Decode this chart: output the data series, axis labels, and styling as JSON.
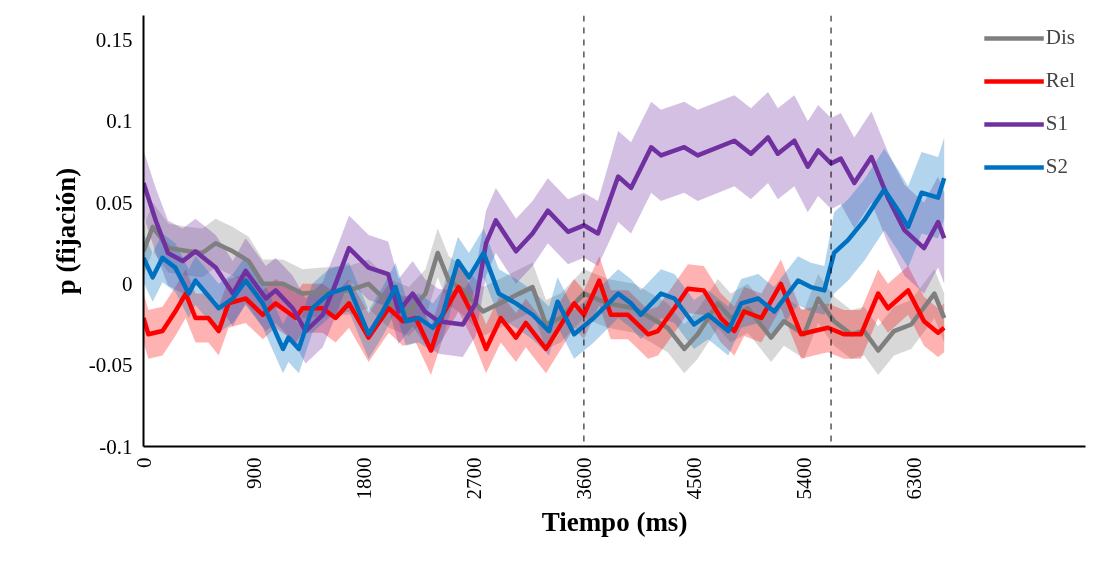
{
  "chart_data": {
    "type": "line",
    "xlabel": "Tiempo (ms)",
    "ylabel": "p (fijación)",
    "xlim": [
      0,
      7700
    ],
    "xticks": [
      0,
      900,
      1800,
      2700,
      3600,
      4500,
      5400,
      6300
    ],
    "ylim": [
      -0.1,
      0.165
    ],
    "yticks": [
      -0.1,
      -0.05,
      0,
      0.05,
      0.1,
      0.15
    ],
    "grid": false,
    "legend": "top right",
    "marker": "none",
    "line_style": "solid",
    "ref_lines": [
      {
        "axis": "x",
        "value": 3600,
        "color": "#000000",
        "line_style": "dashed"
      },
      {
        "axis": "x",
        "value": 5620,
        "color": "#000000",
        "line_style": "dashed"
      }
    ],
    "series": [
      {
        "name": "Dis",
        "color": "#7f7f7f",
        "x": [
          0,
          75,
          205,
          370,
          480,
          590,
          730,
          860,
          975,
          1140,
          1300,
          1465,
          1680,
          1840,
          2005,
          2170,
          2305,
          2405,
          2495,
          2610,
          2775,
          2940,
          3070,
          3180,
          3290,
          3410,
          3600,
          3795,
          4010,
          4150,
          4285,
          4420,
          4530,
          4695,
          4800,
          4940,
          5130,
          5235,
          5400,
          5515,
          5645,
          5785,
          5890,
          6005,
          6135,
          6275,
          6465,
          6545
        ],
        "values": [
          0.02,
          0.035,
          0.022,
          0.02,
          0.019,
          0.025,
          0.02,
          0.014,
          0,
          0,
          -0.006,
          -0.005,
          -0.004,
          0,
          -0.012,
          -0.017,
          -0.006,
          0.019,
          0.002,
          -0.004,
          -0.017,
          -0.011,
          -0.006,
          -0.002,
          -0.025,
          -0.021,
          -0.006,
          -0.012,
          -0.015,
          -0.021,
          -0.027,
          -0.04,
          -0.031,
          -0.012,
          -0.021,
          -0.015,
          -0.033,
          -0.023,
          -0.031,
          -0.009,
          -0.023,
          -0.031,
          -0.029,
          -0.041,
          -0.029,
          -0.025,
          -0.006,
          -0.021
        ],
        "lower": [
          0.005,
          0.02,
          0.007,
          0.005,
          0.004,
          0.01,
          0.005,
          -0.001,
          -0.015,
          -0.015,
          -0.021,
          -0.02,
          -0.019,
          -0.015,
          -0.027,
          -0.032,
          -0.021,
          0.004,
          -0.013,
          -0.019,
          -0.032,
          -0.026,
          -0.021,
          -0.017,
          -0.04,
          -0.036,
          -0.021,
          -0.027,
          -0.03,
          -0.036,
          -0.042,
          -0.055,
          -0.046,
          -0.027,
          -0.036,
          -0.03,
          -0.048,
          -0.038,
          -0.046,
          -0.024,
          -0.038,
          -0.046,
          -0.044,
          -0.056,
          -0.044,
          -0.04,
          -0.021,
          -0.036
        ],
        "upper": [
          0.035,
          0.05,
          0.037,
          0.035,
          0.034,
          0.04,
          0.035,
          0.029,
          0.015,
          0.015,
          0.009,
          0.01,
          0.011,
          0.015,
          0.003,
          -0.002,
          0.009,
          0.034,
          0.017,
          0.011,
          -0.002,
          0.004,
          0.009,
          0.013,
          -0.01,
          -0.006,
          0.009,
          0.003,
          0,
          -0.006,
          -0.012,
          -0.025,
          -0.016,
          0.003,
          -0.006,
          0,
          -0.018,
          -0.008,
          -0.016,
          0.006,
          -0.008,
          -0.016,
          -0.014,
          -0.026,
          -0.014,
          -0.01,
          0.009,
          -0.006
        ]
      },
      {
        "name": "Rel",
        "color": "#ff0000",
        "x": [
          0,
          40,
          155,
          260,
          345,
          425,
          530,
          615,
          695,
          835,
          975,
          1080,
          1245,
          1300,
          1465,
          1570,
          1680,
          1840,
          2005,
          2120,
          2225,
          2350,
          2445,
          2575,
          2690,
          2800,
          2920,
          3045,
          3125,
          3290,
          3520,
          3600,
          3725,
          3820,
          3960,
          4125,
          4205,
          4340,
          4450,
          4580,
          4720,
          4830,
          4910,
          5050,
          5210,
          5375,
          5480,
          5595,
          5725,
          5865,
          6005,
          6085,
          6250,
          6380,
          6495,
          6545
        ],
        "values": [
          -0.021,
          -0.031,
          -0.029,
          -0.017,
          -0.006,
          -0.021,
          -0.021,
          -0.029,
          -0.012,
          -0.009,
          -0.019,
          -0.012,
          -0.021,
          -0.015,
          -0.015,
          -0.021,
          -0.012,
          -0.033,
          -0.015,
          -0.023,
          -0.021,
          -0.041,
          -0.019,
          -0.002,
          -0.019,
          -0.04,
          -0.021,
          -0.033,
          -0.024,
          -0.04,
          -0.012,
          -0.019,
          0.002,
          -0.019,
          -0.019,
          -0.031,
          -0.029,
          -0.015,
          -0.003,
          -0.004,
          -0.021,
          -0.029,
          -0.017,
          -0.021,
          0,
          -0.031,
          -0.029,
          -0.027,
          -0.031,
          -0.031,
          -0.006,
          -0.015,
          -0.004,
          -0.023,
          -0.03,
          -0.027
        ],
        "lower": [
          -0.036,
          -0.046,
          -0.044,
          -0.032,
          -0.021,
          -0.036,
          -0.036,
          -0.044,
          -0.027,
          -0.024,
          -0.034,
          -0.027,
          -0.036,
          -0.03,
          -0.03,
          -0.036,
          -0.027,
          -0.048,
          -0.03,
          -0.038,
          -0.036,
          -0.056,
          -0.034,
          -0.017,
          -0.034,
          -0.055,
          -0.036,
          -0.048,
          -0.039,
          -0.055,
          -0.027,
          -0.034,
          -0.013,
          -0.034,
          -0.034,
          -0.046,
          -0.044,
          -0.03,
          -0.018,
          -0.019,
          -0.036,
          -0.044,
          -0.032,
          -0.036,
          -0.015,
          -0.046,
          -0.044,
          -0.042,
          -0.046,
          -0.046,
          -0.021,
          -0.03,
          -0.019,
          -0.038,
          -0.045,
          -0.042
        ],
        "upper": [
          -0.006,
          -0.016,
          -0.014,
          -0.002,
          0.009,
          -0.006,
          -0.006,
          -0.014,
          0.003,
          0.006,
          -0.004,
          0.003,
          -0.006,
          0,
          0,
          -0.006,
          0.003,
          -0.018,
          0,
          -0.008,
          -0.006,
          -0.026,
          -0.004,
          0.013,
          -0.004,
          -0.025,
          -0.006,
          -0.018,
          -0.009,
          -0.025,
          0.003,
          -0.004,
          0.017,
          -0.004,
          -0.004,
          -0.016,
          -0.014,
          0,
          0.012,
          0.011,
          -0.006,
          -0.014,
          -0.002,
          -0.006,
          0.015,
          -0.016,
          -0.014,
          -0.012,
          -0.016,
          -0.016,
          0.009,
          0,
          0.011,
          -0.008,
          -0.015,
          -0.012
        ]
      },
      {
        "name": "S1",
        "color": "#7030a0",
        "x": [
          0,
          100,
          200,
          320,
          425,
          590,
          730,
          835,
          1000,
          1080,
          1220,
          1325,
          1465,
          1570,
          1680,
          1840,
          2000,
          2085,
          2200,
          2300,
          2410,
          2610,
          2715,
          2800,
          2880,
          3045,
          3180,
          3305,
          3470,
          3600,
          3715,
          3880,
          3985,
          4150,
          4230,
          4420,
          4530,
          4830,
          4965,
          5105,
          5185,
          5320,
          5430,
          5515,
          5620,
          5700,
          5810,
          5950,
          6085,
          6220,
          6380,
          6495,
          6545
        ],
        "values": [
          0.062,
          0.039,
          0.019,
          0.014,
          0.02,
          0.01,
          -0.006,
          0.008,
          -0.009,
          -0.004,
          -0.015,
          -0.029,
          -0.019,
          0,
          0.022,
          0.01,
          0.006,
          -0.017,
          -0.006,
          -0.017,
          -0.023,
          -0.025,
          -0.012,
          0.025,
          0.039,
          0.02,
          0.031,
          0.045,
          0.032,
          0.036,
          0.031,
          0.066,
          0.059,
          0.084,
          0.079,
          0.084,
          0.079,
          0.088,
          0.08,
          0.09,
          0.08,
          0.088,
          0.072,
          0.082,
          0.074,
          0.077,
          0.062,
          0.078,
          0.053,
          0.033,
          0.022,
          0.038,
          0.028
        ],
        "lower": [
          0.042,
          0.019,
          -0.001,
          -0.006,
          0,
          -0.01,
          -0.026,
          -0.012,
          -0.029,
          -0.024,
          -0.035,
          -0.049,
          -0.039,
          -0.02,
          0.002,
          -0.01,
          -0.014,
          -0.037,
          -0.026,
          -0.037,
          -0.043,
          -0.045,
          -0.032,
          0.005,
          0.019,
          0,
          0.011,
          0.025,
          0.012,
          0.016,
          0.011,
          0.038,
          0.031,
          0.056,
          0.051,
          0.056,
          0.051,
          0.06,
          0.052,
          0.062,
          0.052,
          0.06,
          0.044,
          0.054,
          0.046,
          0.049,
          0.034,
          0.05,
          0.025,
          0.005,
          -0.006,
          0.01,
          0
        ],
        "upper": [
          0.082,
          0.059,
          0.039,
          0.034,
          0.04,
          0.03,
          0.014,
          0.028,
          0.011,
          0.016,
          0.005,
          -0.009,
          0.001,
          0.02,
          0.042,
          0.03,
          0.026,
          0.003,
          0.014,
          0.003,
          -0.003,
          -0.005,
          0.008,
          0.045,
          0.059,
          0.04,
          0.051,
          0.065,
          0.052,
          0.056,
          0.051,
          0.094,
          0.087,
          0.112,
          0.107,
          0.112,
          0.107,
          0.116,
          0.108,
          0.118,
          0.108,
          0.116,
          0.1,
          0.11,
          0.102,
          0.105,
          0.09,
          0.106,
          0.081,
          0.061,
          0.05,
          0.066,
          0.056
        ]
      },
      {
        "name": "S2",
        "color": "#0070c0",
        "x": [
          0,
          75,
          155,
          260,
          370,
          425,
          615,
          730,
          835,
          975,
          1140,
          1185,
          1270,
          1380,
          1515,
          1680,
          1840,
          1955,
          2060,
          2145,
          2250,
          2365,
          2445,
          2570,
          2660,
          2780,
          2905,
          3045,
          3180,
          3315,
          3385,
          3520,
          3680,
          3880,
          3985,
          4065,
          4230,
          4340,
          4500,
          4615,
          4780,
          4885,
          5025,
          5155,
          5350,
          5455,
          5565,
          5645,
          5760,
          5890,
          6055,
          6170,
          6250,
          6360,
          6495,
          6545
        ],
        "values": [
          0.016,
          0.004,
          0.016,
          0.01,
          -0.006,
          0.002,
          -0.015,
          -0.009,
          0.002,
          -0.012,
          -0.04,
          -0.033,
          -0.04,
          -0.015,
          -0.006,
          -0.002,
          -0.031,
          -0.017,
          -0.002,
          -0.023,
          -0.021,
          -0.027,
          -0.019,
          0.014,
          0.004,
          0.019,
          -0.006,
          -0.012,
          -0.019,
          -0.029,
          -0.011,
          -0.031,
          -0.021,
          -0.006,
          -0.012,
          -0.019,
          -0.006,
          -0.009,
          -0.025,
          -0.019,
          -0.029,
          -0.012,
          -0.009,
          -0.017,
          0.002,
          -0.002,
          -0.004,
          0.019,
          0.027,
          0.039,
          0.058,
          0.045,
          0.035,
          0.056,
          0.053,
          0.065
        ],
        "lower": [
          0.001,
          -0.011,
          0.001,
          -0.005,
          -0.021,
          -0.013,
          -0.03,
          -0.024,
          -0.013,
          -0.027,
          -0.055,
          -0.048,
          -0.055,
          -0.03,
          -0.021,
          -0.017,
          -0.046,
          -0.032,
          -0.017,
          -0.038,
          -0.036,
          -0.042,
          -0.034,
          -0.001,
          -0.011,
          0.004,
          -0.021,
          -0.027,
          -0.034,
          -0.044,
          -0.026,
          -0.046,
          -0.036,
          -0.021,
          -0.027,
          -0.034,
          -0.021,
          -0.024,
          -0.04,
          -0.034,
          -0.044,
          -0.027,
          -0.024,
          -0.032,
          -0.013,
          -0.017,
          -0.019,
          -0.006,
          0.002,
          0.014,
          0.033,
          0.02,
          0.01,
          0.031,
          0.028,
          0.04
        ],
        "upper": [
          0.031,
          0.019,
          0.031,
          0.025,
          0.009,
          0.017,
          0,
          0.006,
          0.017,
          0.003,
          -0.025,
          -0.018,
          -0.025,
          0,
          0.009,
          0.013,
          -0.016,
          -0.002,
          0.013,
          -0.008,
          -0.006,
          -0.012,
          -0.004,
          0.029,
          0.019,
          0.034,
          0.009,
          0.003,
          -0.004,
          -0.014,
          0.004,
          -0.016,
          -0.006,
          0.009,
          0.003,
          -0.004,
          0.009,
          0.006,
          -0.01,
          -0.004,
          -0.014,
          0.003,
          0.006,
          -0.002,
          0.017,
          0.013,
          0.011,
          0.044,
          0.052,
          0.064,
          0.083,
          0.07,
          0.06,
          0.081,
          0.078,
          0.09
        ]
      }
    ]
  }
}
